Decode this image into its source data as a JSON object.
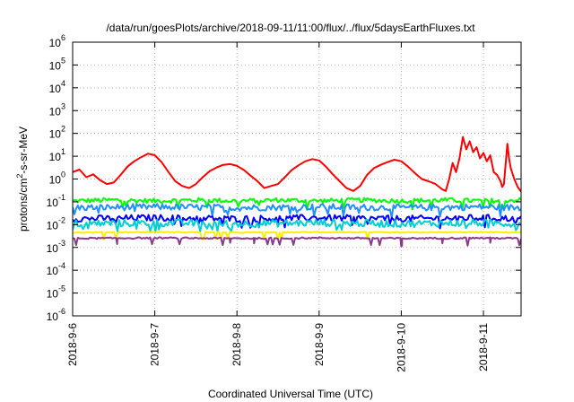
{
  "chart_data": {
    "type": "line",
    "title": "/data/run/goesPlots/archive/2018-09-11/11:00/flux/../flux/5daysEarthFluxes.txt",
    "xlabel": "Coordinated Universal Time (UTC)",
    "ylabel_parts": {
      "pre": "protons/cm",
      "sup": "2",
      "post": "-s-sr-MeV"
    },
    "y_scale": "log",
    "ylim": [
      1e-06,
      1000000.0
    ],
    "y_ticks": [
      {
        "exp": "-6",
        "value": 1e-06
      },
      {
        "exp": "-5",
        "value": 1e-05
      },
      {
        "exp": "-4",
        "value": 0.0001
      },
      {
        "exp": "-3",
        "value": 0.001
      },
      {
        "exp": "-2",
        "value": 0.01
      },
      {
        "exp": "-1",
        "value": 0.1
      },
      {
        "exp": "0",
        "value": 1
      },
      {
        "exp": "1",
        "value": 10
      },
      {
        "exp": "2",
        "value": 100
      },
      {
        "exp": "3",
        "value": 1000
      },
      {
        "exp": "4",
        "value": 10000
      },
      {
        "exp": "5",
        "value": 100000
      },
      {
        "exp": "6",
        "value": 1000000
      }
    ],
    "xlim": [
      "2018-09-06T00:00",
      "2018-09-11T11:00"
    ],
    "x_ticks": [
      {
        "label": "2018-9-6",
        "t": "2018-09-06T00:00"
      },
      {
        "label": "2018-9-7",
        "t": "2018-09-07T00:00"
      },
      {
        "label": "2018-9-8",
        "t": "2018-09-08T00:00"
      },
      {
        "label": "2018-9-9",
        "t": "2018-09-09T00:00"
      },
      {
        "label": "2018-9-10",
        "t": "2018-09-10T00:00"
      },
      {
        "label": "2018-9-11",
        "t": "2018-09-11T00:00"
      }
    ],
    "grid": true,
    "legend": "none",
    "series": [
      {
        "color": "#ff0000",
        "points": [
          [
            "2018-09-06T00:00",
            2.0
          ],
          [
            "2018-09-06T02:00",
            2.6
          ],
          [
            "2018-09-06T04:00",
            1.2
          ],
          [
            "2018-09-06T06:00",
            1.6
          ],
          [
            "2018-09-06T08:00",
            0.9
          ],
          [
            "2018-09-06T10:00",
            0.6
          ],
          [
            "2018-09-06T12:00",
            0.7
          ],
          [
            "2018-09-06T14:00",
            1.5
          ],
          [
            "2018-09-06T16:00",
            3.5
          ],
          [
            "2018-09-06T18:00",
            6.0
          ],
          [
            "2018-09-06T20:00",
            9.0
          ],
          [
            "2018-09-06T22:00",
            13.0
          ],
          [
            "2018-09-07T00:00",
            11.0
          ],
          [
            "2018-09-07T02:00",
            5.5
          ],
          [
            "2018-09-07T04:00",
            2.0
          ],
          [
            "2018-09-07T06:00",
            0.8
          ],
          [
            "2018-09-07T08:00",
            0.5
          ],
          [
            "2018-09-07T10:00",
            0.4
          ],
          [
            "2018-09-07T12:00",
            0.6
          ],
          [
            "2018-09-07T14:00",
            1.2
          ],
          [
            "2018-09-07T16:00",
            2.2
          ],
          [
            "2018-09-07T18:00",
            3.2
          ],
          [
            "2018-09-07T20:00",
            4.2
          ],
          [
            "2018-09-07T22:00",
            4.5
          ],
          [
            "2018-09-08T00:00",
            3.8
          ],
          [
            "2018-09-08T02:00",
            2.5
          ],
          [
            "2018-09-08T04:00",
            1.4
          ],
          [
            "2018-09-08T06:00",
            0.8
          ],
          [
            "2018-09-08T08:00",
            0.4
          ],
          [
            "2018-09-08T10:00",
            0.5
          ],
          [
            "2018-09-08T12:00",
            0.6
          ],
          [
            "2018-09-08T14:00",
            1.2
          ],
          [
            "2018-09-08T16:00",
            2.5
          ],
          [
            "2018-09-08T18:00",
            4.0
          ],
          [
            "2018-09-08T20:00",
            6.0
          ],
          [
            "2018-09-08T22:00",
            7.5
          ],
          [
            "2018-09-09T00:00",
            6.5
          ],
          [
            "2018-09-09T02:00",
            3.5
          ],
          [
            "2018-09-09T04:00",
            1.6
          ],
          [
            "2018-09-09T06:00",
            0.8
          ],
          [
            "2018-09-09T08:00",
            0.4
          ],
          [
            "2018-09-09T10:00",
            0.3
          ],
          [
            "2018-09-09T12:00",
            0.5
          ],
          [
            "2018-09-09T14:00",
            1.5
          ],
          [
            "2018-09-09T16:00",
            3.0
          ],
          [
            "2018-09-09T18:00",
            4.2
          ],
          [
            "2018-09-09T20:00",
            5.5
          ],
          [
            "2018-09-09T22:00",
            7.0
          ],
          [
            "2018-09-10T00:00",
            6.0
          ],
          [
            "2018-09-10T02:00",
            3.5
          ],
          [
            "2018-09-10T04:00",
            1.8
          ],
          [
            "2018-09-10T06:00",
            1.0
          ],
          [
            "2018-09-10T08:00",
            0.8
          ],
          [
            "2018-09-10T10:00",
            0.6
          ],
          [
            "2018-09-10T12:00",
            0.35
          ],
          [
            "2018-09-10T13:00",
            0.3
          ],
          [
            "2018-09-10T14:00",
            1.0
          ],
          [
            "2018-09-10T15:00",
            5.0
          ],
          [
            "2018-09-10T16:00",
            2.0
          ],
          [
            "2018-09-10T17:00",
            8.0
          ],
          [
            "2018-09-10T18:00",
            70.0
          ],
          [
            "2018-09-10T19:00",
            20.0
          ],
          [
            "2018-09-10T20:00",
            45.0
          ],
          [
            "2018-09-10T21:00",
            15.0
          ],
          [
            "2018-09-10T22:00",
            25.0
          ],
          [
            "2018-09-10T23:00",
            8.0
          ],
          [
            "2018-09-11T00:00",
            14.0
          ],
          [
            "2018-09-11T01:00",
            6.0
          ],
          [
            "2018-09-11T02:00",
            11.0
          ],
          [
            "2018-09-11T03:00",
            2.0
          ],
          [
            "2018-09-11T04:00",
            1.5
          ],
          [
            "2018-09-11T05:00",
            0.8
          ],
          [
            "2018-09-11T05:30",
            0.45
          ],
          [
            "2018-09-11T06:00",
            0.6
          ],
          [
            "2018-09-11T07:00",
            35.0
          ],
          [
            "2018-09-11T07:30",
            8.0
          ],
          [
            "2018-09-11T08:00",
            3.0
          ],
          [
            "2018-09-11T09:00",
            1.0
          ],
          [
            "2018-09-11T10:00",
            0.45
          ],
          [
            "2018-09-11T11:00",
            0.28
          ]
        ]
      },
      {
        "color": "#00ff00",
        "points": [
          [
            "2018-09-06T00:00",
            0.11
          ],
          [
            "2018-09-06T12:00",
            0.12
          ],
          [
            "2018-09-07T00:00",
            0.11
          ],
          [
            "2018-09-07T12:00",
            0.12
          ],
          [
            "2018-09-08T00:00",
            0.11
          ],
          [
            "2018-09-08T12:00",
            0.12
          ],
          [
            "2018-09-09T00:00",
            0.11
          ],
          [
            "2018-09-09T12:00",
            0.12
          ],
          [
            "2018-09-10T00:00",
            0.11
          ],
          [
            "2018-09-10T12:00",
            0.12
          ],
          [
            "2018-09-11T00:00",
            0.11
          ],
          [
            "2018-09-11T11:00",
            0.12
          ]
        ],
        "noise": 0.25
      },
      {
        "color": "#1e90ff",
        "points": [
          [
            "2018-09-06T00:00",
            0.055
          ],
          [
            "2018-09-07T00:00",
            0.06
          ],
          [
            "2018-09-08T00:00",
            0.055
          ],
          [
            "2018-09-09T00:00",
            0.06
          ],
          [
            "2018-09-10T00:00",
            0.055
          ],
          [
            "2018-09-11T00:00",
            0.06
          ],
          [
            "2018-09-11T11:00",
            0.055
          ]
        ],
        "noise": 0.35
      },
      {
        "color": "#0000ff",
        "points": [
          [
            "2018-09-06T00:00",
            0.018
          ],
          [
            "2018-09-07T00:00",
            0.02
          ],
          [
            "2018-09-08T00:00",
            0.018
          ],
          [
            "2018-09-09T00:00",
            0.02
          ],
          [
            "2018-09-10T00:00",
            0.018
          ],
          [
            "2018-09-11T00:00",
            0.02
          ],
          [
            "2018-09-11T11:00",
            0.018
          ]
        ],
        "noise": 0.35
      },
      {
        "color": "#00ced1",
        "points": [
          [
            "2018-09-06T00:00",
            0.011
          ],
          [
            "2018-09-07T00:00",
            0.012
          ],
          [
            "2018-09-08T00:00",
            0.011
          ],
          [
            "2018-09-09T00:00",
            0.012
          ],
          [
            "2018-09-10T00:00",
            0.011
          ],
          [
            "2018-09-11T00:00",
            0.012
          ],
          [
            "2018-09-11T11:00",
            0.011
          ]
        ],
        "noise": 0.4
      },
      {
        "color": "#ffee00",
        "points": [
          [
            "2018-09-06T00:00",
            0.0045
          ],
          [
            "2018-09-07T00:00",
            0.0047
          ],
          [
            "2018-09-08T00:00",
            0.0045
          ],
          [
            "2018-09-09T00:00",
            0.0047
          ],
          [
            "2018-09-10T00:00",
            0.0045
          ],
          [
            "2018-09-11T00:00",
            0.0047
          ],
          [
            "2018-09-11T11:00",
            0.0045
          ]
        ],
        "noise": 0.05
      },
      {
        "color": "#8b3a8b",
        "points": [
          [
            "2018-09-06T00:00",
            0.0025
          ],
          [
            "2018-09-07T00:00",
            0.0026
          ],
          [
            "2018-09-08T00:00",
            0.0025
          ],
          [
            "2018-09-09T00:00",
            0.0026
          ],
          [
            "2018-09-10T00:00",
            0.0025
          ],
          [
            "2018-09-11T00:00",
            0.0026
          ],
          [
            "2018-09-11T11:00",
            0.0025
          ]
        ],
        "noise": 0.08,
        "dips": [
          [
            "2018-09-06T13:00",
            0.0014
          ],
          [
            "2018-09-07T22:00",
            0.0016
          ],
          [
            "2018-09-08T05:00",
            0.0015
          ],
          [
            "2018-09-10T00:00",
            0.0011
          ],
          [
            "2018-09-10T12:00",
            0.0015
          ],
          [
            "2018-09-11T02:00",
            0.0016
          ]
        ]
      }
    ]
  }
}
